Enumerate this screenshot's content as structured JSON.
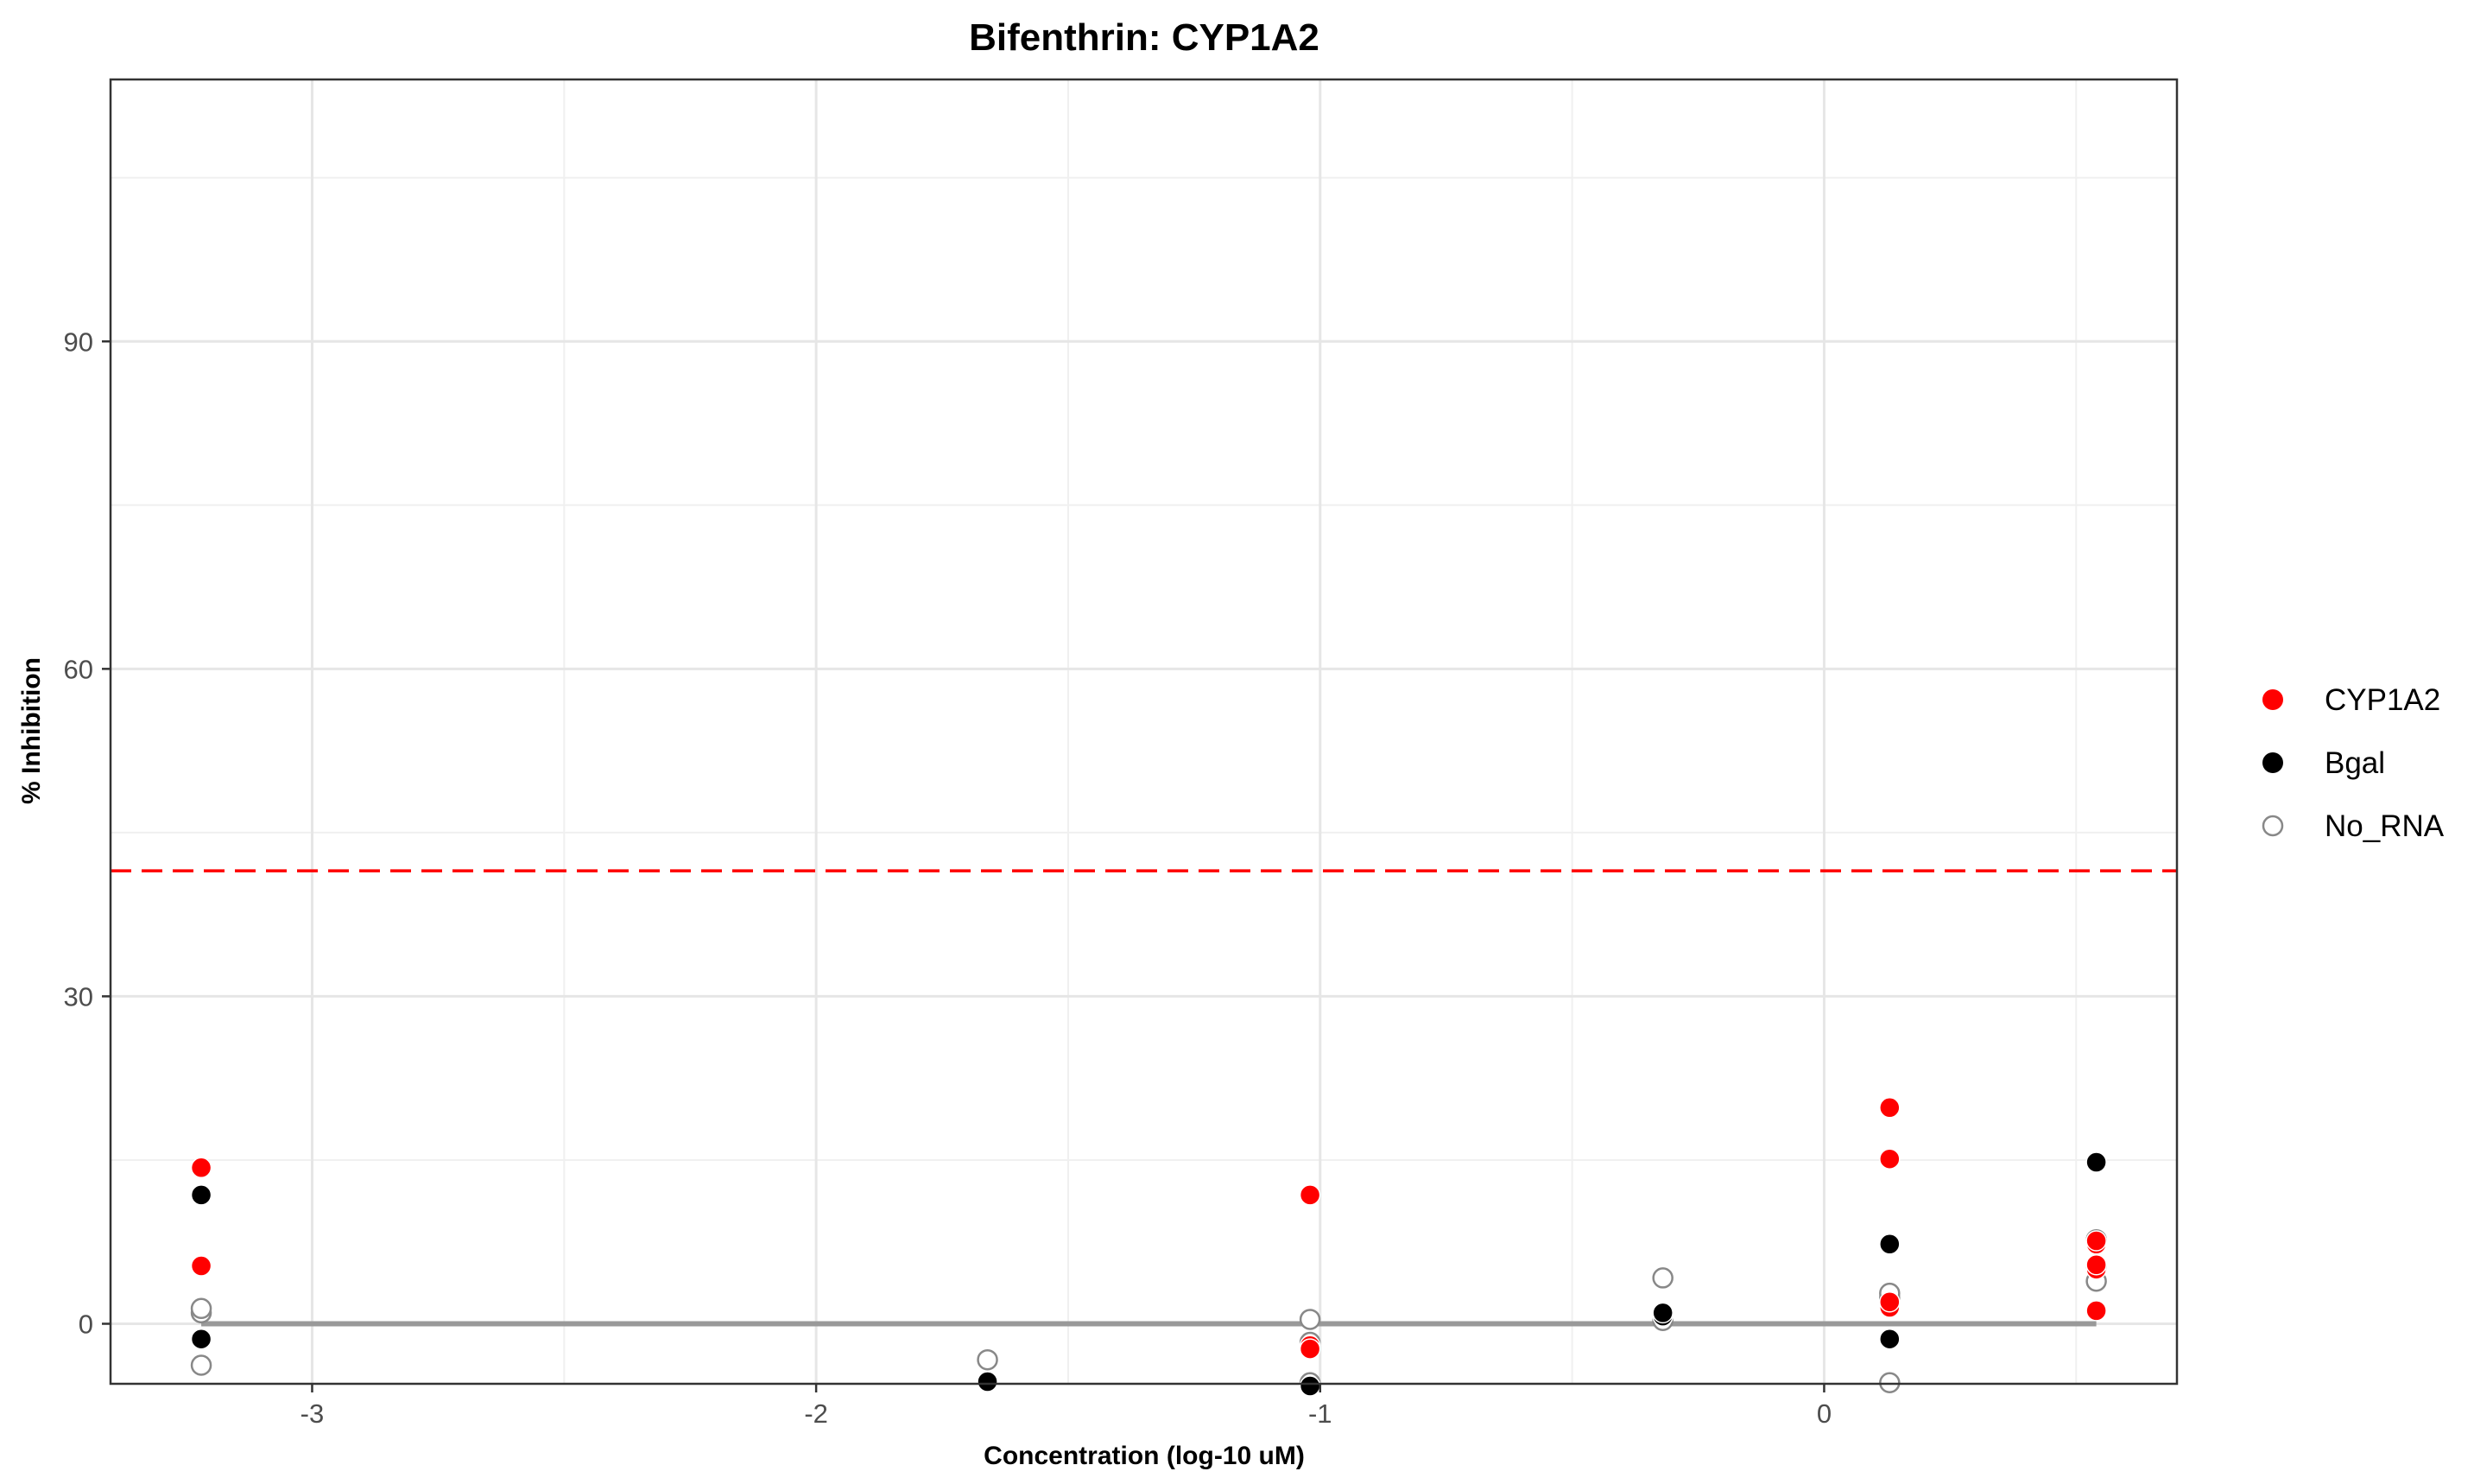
{
  "chart_data": {
    "type": "scatter",
    "title": "Bifenthrin: CYP1A2",
    "xlabel": "Concentration (log-10 uM)",
    "ylabel": "% Inhibition",
    "xlim": [
      -3.4,
      0.7
    ],
    "ylim": [
      114,
      -5.5
    ],
    "y_reversed": true,
    "x_ticks": [
      -3,
      -2,
      -1,
      0
    ],
    "x_tick_labels": [
      "-3",
      "-2",
      "-1",
      "0"
    ],
    "y_ticks": [
      0,
      30,
      60,
      90
    ],
    "y_tick_labels": [
      "0",
      "30",
      "60",
      "90"
    ],
    "grid": true,
    "legend_position": "right",
    "series": [
      {
        "name": "CYP1A2",
        "marker": "filled-circle",
        "color": "#ff0000",
        "points": [
          {
            "x": -3.22,
            "y": 5.3
          },
          {
            "x": -3.22,
            "y": 14.3
          },
          {
            "x": -1.02,
            "y": -2.0
          },
          {
            "x": -1.02,
            "y": -2.3
          },
          {
            "x": -1.02,
            "y": 11.8
          },
          {
            "x": 0.13,
            "y": 1.5
          },
          {
            "x": 0.13,
            "y": 2.0
          },
          {
            "x": 0.13,
            "y": 15.1
          },
          {
            "x": 0.13,
            "y": 19.8
          },
          {
            "x": 0.54,
            "y": 1.2
          },
          {
            "x": 0.54,
            "y": 5.0
          },
          {
            "x": 0.54,
            "y": 5.4
          },
          {
            "x": 0.54,
            "y": 7.3
          },
          {
            "x": 0.54,
            "y": 7.6
          }
        ]
      },
      {
        "name": "Bgal",
        "marker": "filled-circle",
        "color": "#000000",
        "points": [
          {
            "x": -3.22,
            "y": -1.4
          },
          {
            "x": -3.22,
            "y": 11.8
          },
          {
            "x": -1.66,
            "y": -5.3
          },
          {
            "x": -1.02,
            "y": -5.7
          },
          {
            "x": -0.32,
            "y": 0.7
          },
          {
            "x": -0.32,
            "y": 1.0
          },
          {
            "x": 0.13,
            "y": -1.4
          },
          {
            "x": 0.13,
            "y": 7.3
          },
          {
            "x": 0.54,
            "y": 14.8
          }
        ]
      },
      {
        "name": "No_RNA",
        "marker": "open-circle",
        "color": "#888888",
        "points": [
          {
            "x": -3.22,
            "y": -3.8
          },
          {
            "x": -3.22,
            "y": 1.0
          },
          {
            "x": -3.22,
            "y": 1.4
          },
          {
            "x": -1.66,
            "y": -3.3
          },
          {
            "x": -1.02,
            "y": -5.4
          },
          {
            "x": -1.02,
            "y": -1.7
          },
          {
            "x": -1.02,
            "y": 0.4
          },
          {
            "x": -0.32,
            "y": 0.3
          },
          {
            "x": -0.32,
            "y": 4.2
          },
          {
            "x": 0.13,
            "y": -5.4
          },
          {
            "x": 0.13,
            "y": 2.4
          },
          {
            "x": 0.13,
            "y": 2.8
          },
          {
            "x": 0.54,
            "y": 3.9
          },
          {
            "x": 0.54,
            "y": 5.1
          },
          {
            "x": 0.54,
            "y": 7.7
          }
        ]
      }
    ],
    "reference_lines": [
      {
        "kind": "fit",
        "color": "#999999",
        "style": "solid",
        "x_from": -3.22,
        "x_to": 0.54,
        "y": 0
      },
      {
        "kind": "threshold",
        "color": "#ff0000",
        "style": "dashed",
        "y": 41.5
      }
    ]
  }
}
